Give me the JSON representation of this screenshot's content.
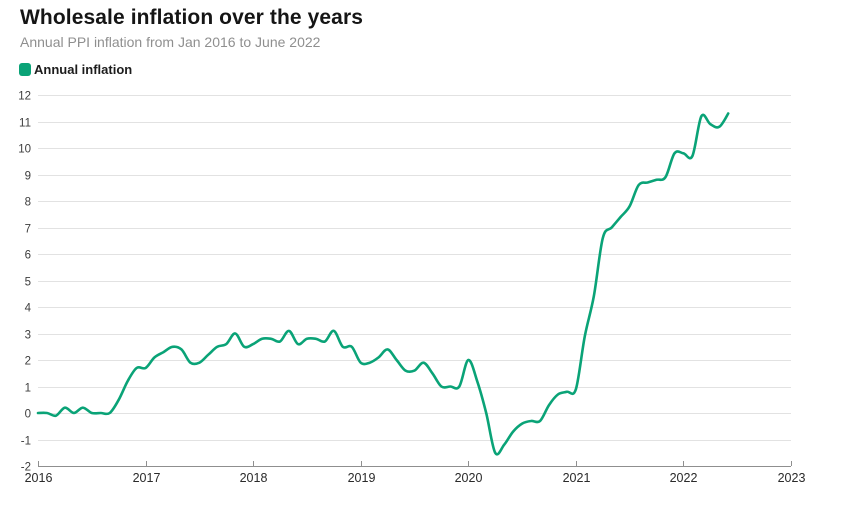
{
  "header": {
    "title": "Wholesale inflation over the years",
    "subtitle": "Annual PPI inflation from Jan 2016 to June 2022"
  },
  "legend": {
    "label": "Annual inflation",
    "color": "#0aa377"
  },
  "chart_data": {
    "type": "line",
    "title": "Wholesale inflation over the years",
    "subtitle": "Annual PPI inflation from Jan 2016 to June 2022",
    "grid": true,
    "legend_position": "top-left",
    "line_color": "#0aa377",
    "x_start": "2016-01",
    "x_end": "2022-06",
    "frequency": "monthly",
    "x_tick_labels": [
      "2016",
      "2017",
      "2018",
      "2019",
      "2020",
      "2021",
      "2022",
      "2023"
    ],
    "y_ticks": [
      -2,
      -1,
      0,
      1,
      2,
      3,
      4,
      5,
      6,
      7,
      8,
      9,
      10,
      11,
      12
    ],
    "ylim": [
      -2,
      12
    ],
    "series": [
      {
        "name": "Annual inflation",
        "unit": "percent",
        "values": [
          0.0,
          0.0,
          -0.1,
          0.2,
          0.0,
          0.2,
          0.0,
          0.0,
          0.0,
          0.5,
          1.2,
          1.7,
          1.7,
          2.1,
          2.3,
          2.5,
          2.4,
          1.9,
          1.9,
          2.2,
          2.5,
          2.6,
          3.0,
          2.5,
          2.6,
          2.8,
          2.8,
          2.7,
          3.1,
          2.6,
          2.8,
          2.8,
          2.7,
          3.1,
          2.5,
          2.5,
          1.9,
          1.9,
          2.1,
          2.4,
          2.0,
          1.6,
          1.6,
          1.9,
          1.5,
          1.0,
          1.0,
          1.0,
          2.0,
          1.2,
          0.0,
          -1.5,
          -1.2,
          -0.7,
          -0.4,
          -0.3,
          -0.3,
          0.3,
          0.7,
          0.8,
          0.9,
          2.9,
          4.4,
          6.6,
          7.0,
          7.4,
          7.8,
          8.6,
          8.7,
          8.8,
          8.9,
          9.8,
          9.8,
          9.7,
          11.2,
          10.9,
          10.8,
          11.3
        ]
      }
    ]
  }
}
